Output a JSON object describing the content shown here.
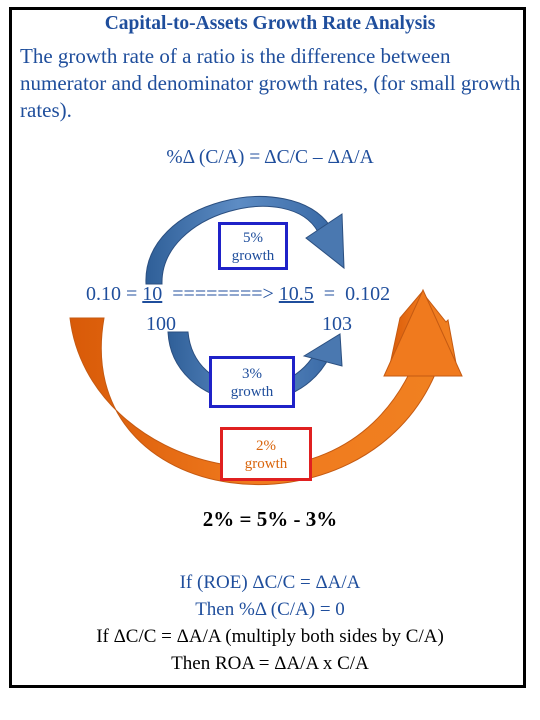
{
  "title": "Capital-to-Assets Growth Rate Analysis",
  "intro": "The growth rate of a ratio is the difference between numerator and denominator growth rates, (for small growth rates).",
  "formula": "%Δ (C/A) = ΔC/C – ΔA/A",
  "ratio": {
    "left_value": "0.10",
    "equals": "=",
    "numerator_start": "10",
    "arrow": "========>",
    "numerator_end": "10.5",
    "result_equals": "=",
    "result": "0.102",
    "denominator_start": "100",
    "denominator_end": "103"
  },
  "labels": {
    "top": {
      "pct": "5%",
      "word": "growth"
    },
    "middle": {
      "pct": "3%",
      "word": "growth"
    },
    "bottom": {
      "pct": "2%",
      "word": "growth"
    }
  },
  "equation": "2% = 5% - 3%",
  "notes": [
    "If (ROE) ΔC/C = ΔA/A",
    "Then %Δ (C/A) = 0",
    "If ΔC/C = ΔA/A (multiply both sides by C/A)",
    "Then ROA = ΔA/A x C/A"
  ],
  "colors": {
    "text_blue": "#1f4e9c",
    "arrow_blue": "#4a78b0",
    "arrow_orange": "#e06a10",
    "box_blue": "#1f22c8",
    "box_red": "#e02020",
    "label_orange": "#d9650c"
  }
}
